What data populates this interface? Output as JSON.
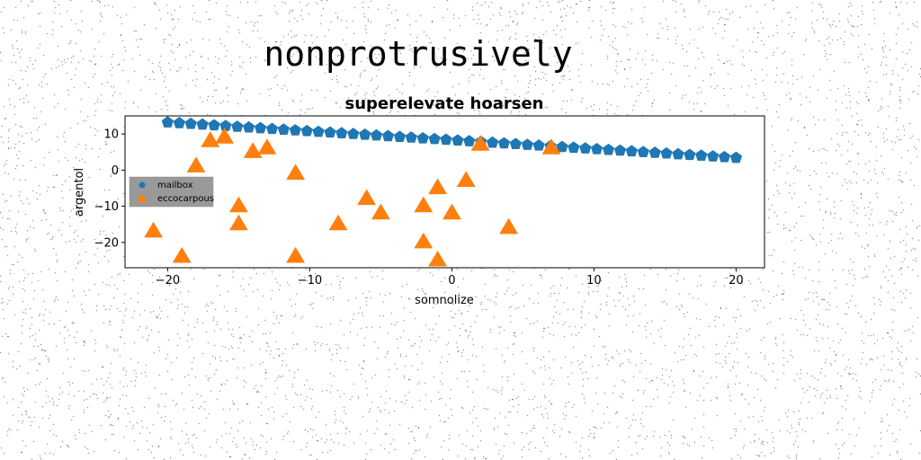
{
  "suptitle": "nonprotrusively",
  "chart_data": {
    "type": "scatter",
    "title": "superelevate hoarsen",
    "xlabel": "somnolize",
    "ylabel": "argentol",
    "xlim": [
      -23,
      22
    ],
    "ylim": [
      -27,
      15
    ],
    "xticks": [
      -20,
      -10,
      0,
      10,
      20
    ],
    "xtick_labels": [
      "−20",
      "−10",
      "0",
      "10",
      "20"
    ],
    "yticks": [
      10,
      0,
      -10,
      -20
    ],
    "ytick_labels": [
      "10",
      "0",
      "−10",
      "−20"
    ],
    "grid": false,
    "legend_position": "left",
    "series": [
      {
        "name": "mailbox",
        "marker": "pentagon",
        "color": "#1f77b4",
        "x": [
          -20.0,
          -19.18,
          -18.37,
          -17.55,
          -16.73,
          -15.92,
          -15.1,
          -14.29,
          -13.47,
          -12.65,
          -11.84,
          -11.02,
          -10.2,
          -9.39,
          -8.57,
          -7.76,
          -6.94,
          -6.12,
          -5.31,
          -4.49,
          -3.67,
          -2.86,
          -2.04,
          -1.22,
          -0.41,
          0.41,
          1.22,
          2.04,
          2.86,
          3.67,
          4.49,
          5.31,
          6.12,
          6.94,
          7.76,
          8.57,
          9.39,
          10.2,
          11.02,
          11.84,
          12.65,
          13.47,
          14.29,
          15.1,
          15.92,
          16.73,
          17.55,
          18.37,
          19.18,
          20.0
        ],
        "y": [
          13.2,
          13.0,
          12.8,
          12.6,
          12.4,
          12.2,
          12.0,
          11.8,
          11.6,
          11.4,
          11.2,
          11.0,
          10.8,
          10.6,
          10.4,
          10.2,
          10.0,
          9.8,
          9.6,
          9.4,
          9.2,
          9.0,
          8.8,
          8.6,
          8.4,
          8.2,
          8.0,
          7.8,
          7.6,
          7.4,
          7.2,
          7.0,
          6.8,
          6.6,
          6.4,
          6.2,
          6.0,
          5.8,
          5.6,
          5.4,
          5.2,
          5.0,
          4.8,
          4.6,
          4.4,
          4.2,
          4.0,
          3.8,
          3.6,
          3.4
        ]
      },
      {
        "name": "eccocarpous",
        "marker": "triangle",
        "color": "#ff7f0e",
        "x": [
          -21,
          -19,
          -18,
          -17,
          -16,
          -15,
          -15,
          -14,
          -13,
          -11,
          -11,
          -8,
          -6,
          -5,
          -2,
          -2,
          -1,
          -1,
          0,
          1,
          2,
          4,
          7
        ],
        "y": [
          -17,
          -24,
          1,
          8,
          9,
          -10,
          -15,
          5,
          6,
          -1,
          -24,
          -15,
          -8,
          -12,
          -10,
          -20,
          -5,
          -25,
          -12,
          -3,
          7,
          -16,
          6
        ]
      }
    ]
  }
}
